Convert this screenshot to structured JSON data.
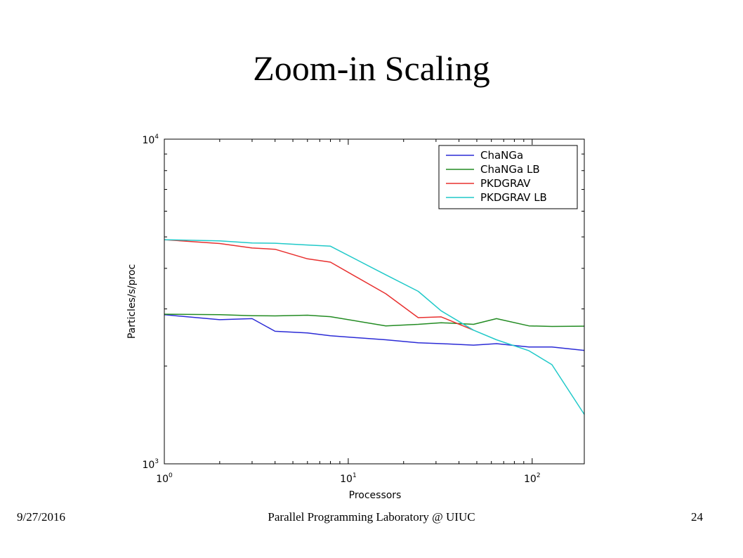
{
  "slide": {
    "title": "Zoom-in Scaling",
    "footer_date": "9/27/2016",
    "footer_center": "Parallel Programming Laboratory @ UIUC",
    "page_number": "24"
  },
  "chart_data": {
    "type": "line",
    "title": "",
    "xlabel": "Processors",
    "ylabel": "Particles/s/proc",
    "xscale": "log",
    "yscale": "log",
    "xlim": [
      1,
      192
    ],
    "ylim": [
      1000,
      10000
    ],
    "xticks": [
      {
        "v": 1,
        "base": "10",
        "exp": "0"
      },
      {
        "v": 10,
        "base": "10",
        "exp": "1"
      },
      {
        "v": 100,
        "base": "10",
        "exp": "2"
      }
    ],
    "yticks": [
      {
        "v": 1000,
        "base": "10",
        "exp": "3"
      },
      {
        "v": 10000,
        "base": "10",
        "exp": "4"
      }
    ],
    "legend_position": "top-right",
    "series": [
      {
        "name": "ChaNGa",
        "color": "#2b2bd6",
        "points": [
          [
            1,
            2880
          ],
          [
            2,
            2780
          ],
          [
            3,
            2800
          ],
          [
            4,
            2560
          ],
          [
            6,
            2530
          ],
          [
            8,
            2480
          ],
          [
            16,
            2410
          ],
          [
            24,
            2360
          ],
          [
            32,
            2345
          ],
          [
            48,
            2320
          ],
          [
            64,
            2345
          ],
          [
            96,
            2290
          ],
          [
            128,
            2290
          ],
          [
            192,
            2235
          ]
        ]
      },
      {
        "name": "ChaNGa LB",
        "color": "#228b22",
        "points": [
          [
            1,
            2890
          ],
          [
            2,
            2880
          ],
          [
            3,
            2860
          ],
          [
            4,
            2855
          ],
          [
            6,
            2870
          ],
          [
            8,
            2840
          ],
          [
            16,
            2660
          ],
          [
            24,
            2690
          ],
          [
            32,
            2720
          ],
          [
            48,
            2690
          ],
          [
            64,
            2800
          ],
          [
            96,
            2660
          ],
          [
            128,
            2650
          ],
          [
            192,
            2655
          ]
        ]
      },
      {
        "name": "PKDGRAV",
        "color": "#e8302f",
        "points": [
          [
            1,
            4900
          ],
          [
            2,
            4770
          ],
          [
            3,
            4620
          ],
          [
            4,
            4580
          ],
          [
            6,
            4280
          ],
          [
            8,
            4180
          ],
          [
            16,
            3340
          ],
          [
            24,
            2820
          ],
          [
            32,
            2835
          ],
          [
            48,
            2580
          ]
        ]
      },
      {
        "name": "PKDGRAV LB",
        "color": "#20c9c9",
        "points": [
          [
            1,
            4900
          ],
          [
            2,
            4860
          ],
          [
            3,
            4790
          ],
          [
            4,
            4780
          ],
          [
            6,
            4720
          ],
          [
            8,
            4680
          ],
          [
            16,
            3820
          ],
          [
            24,
            3400
          ],
          [
            32,
            2960
          ],
          [
            48,
            2580
          ],
          [
            64,
            2410
          ],
          [
            96,
            2230
          ],
          [
            128,
            2020
          ],
          [
            192,
            1420
          ]
        ]
      }
    ]
  }
}
